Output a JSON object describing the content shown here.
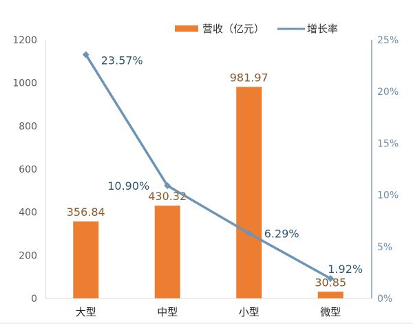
{
  "chart_data": {
    "type": "bar+line",
    "categories": [
      "大型",
      "中型",
      "小型",
      "微型"
    ],
    "series": [
      {
        "name": "营收（亿元）",
        "type": "bar",
        "axis": "left",
        "values": [
          356.84,
          430.32,
          981.97,
          30.85
        ],
        "labels": [
          "356.84",
          "430.32",
          "981.97",
          "30.85"
        ],
        "color": "#ed7d31"
      },
      {
        "name": "增长率",
        "type": "line",
        "axis": "right",
        "values": [
          23.57,
          10.9,
          6.29,
          1.92
        ],
        "labels": [
          "23.57%",
          "10.90%",
          "6.29%",
          "1.92%"
        ],
        "color": "#6c94b8"
      }
    ],
    "left_axis": {
      "ylim": [
        0,
        1200
      ],
      "ticks": [
        "0",
        "200",
        "400",
        "600",
        "800",
        "1000",
        "1200"
      ]
    },
    "right_axis": {
      "ylim": [
        0,
        25
      ],
      "ticks": [
        "0%",
        "5%",
        "10%",
        "15%",
        "20%",
        "25%"
      ]
    },
    "legend": {
      "placement": "top",
      "entries": [
        "营收（亿元）",
        "增长率"
      ]
    },
    "grid": false
  }
}
